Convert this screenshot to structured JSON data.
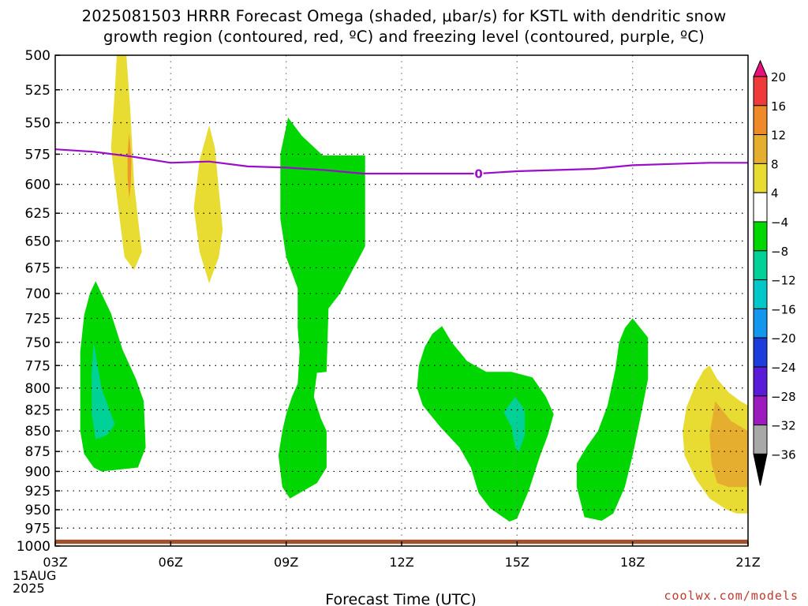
{
  "title": {
    "line1": "2025081503 HRRR Forecast Omega (shaded, μbar/s) for KSTL with dendritic snow",
    "line2": "growth region (contoured, red, ºC) and freezing level (contoured, purple, ºC)"
  },
  "credit": "coolwx.com/models",
  "chart_data": {
    "type": "heatmap",
    "xlabel": "Forecast Time (UTC)",
    "x_ticks": [
      "03Z",
      "06Z",
      "09Z",
      "12Z",
      "15Z",
      "18Z",
      "21Z"
    ],
    "x_tick_hours": [
      3,
      6,
      9,
      12,
      15,
      18,
      21
    ],
    "x_start_date_lines": [
      "15AUG",
      "2025"
    ],
    "xlim": [
      3,
      21
    ],
    "y_ticks": [
      500,
      525,
      550,
      575,
      600,
      625,
      650,
      675,
      700,
      725,
      750,
      775,
      800,
      825,
      850,
      875,
      900,
      925,
      950,
      975,
      1000
    ],
    "ylim": [
      500,
      1000
    ],
    "y_units": "hPa",
    "y_scale": "log",
    "grid": true,
    "colorbar": {
      "labels": [
        "20",
        "16",
        "12",
        "8",
        "4",
        "−4",
        "−8",
        "−12",
        "−16",
        "−20",
        "−24",
        "−28",
        "−32",
        "−36"
      ],
      "bins": [
        {
          "lo": 20,
          "hi": null,
          "color": "#e8107a"
        },
        {
          "lo": 16,
          "hi": 20,
          "color": "#f03a3a"
        },
        {
          "lo": 12,
          "hi": 16,
          "color": "#ee8a28"
        },
        {
          "lo": 8,
          "hi": 12,
          "color": "#e6ae2e"
        },
        {
          "lo": 4,
          "hi": 8,
          "color": "#e8dc33"
        },
        {
          "lo": -4,
          "hi": 4,
          "color": "#ffffff"
        },
        {
          "lo": -8,
          "hi": -4,
          "color": "#00d600"
        },
        {
          "lo": -12,
          "hi": -8,
          "color": "#00d196"
        },
        {
          "lo": -16,
          "hi": -12,
          "color": "#00c8c8"
        },
        {
          "lo": -20,
          "hi": -16,
          "color": "#1296ee"
        },
        {
          "lo": -24,
          "hi": -20,
          "color": "#1c3cdc"
        },
        {
          "lo": -28,
          "hi": -24,
          "color": "#5a1ad8"
        },
        {
          "lo": -32,
          "hi": -28,
          "color": "#9c1abe"
        },
        {
          "lo": -36,
          "hi": -32,
          "color": "#a8a8a8"
        },
        {
          "lo": null,
          "hi": -36,
          "color": "#000000"
        }
      ]
    },
    "omega_regions": [
      {
        "color": "#e8dc33",
        "points": [
          [
            4.6,
            500
          ],
          [
            4.85,
            500
          ],
          [
            4.95,
            540
          ],
          [
            5.05,
            600
          ],
          [
            5.15,
            630
          ],
          [
            5.25,
            660
          ],
          [
            5.05,
            677
          ],
          [
            4.8,
            665
          ],
          [
            4.6,
            610
          ],
          [
            4.45,
            570
          ],
          [
            4.55,
            525
          ]
        ]
      },
      {
        "color": "#ee9a28",
        "points": [
          [
            4.92,
            558
          ],
          [
            4.98,
            580
          ],
          [
            4.96,
            602
          ],
          [
            4.92,
            612
          ],
          [
            4.88,
            595
          ],
          [
            4.88,
            575
          ]
        ]
      },
      {
        "color": "#e8dc33",
        "points": [
          [
            7.0,
            552
          ],
          [
            7.15,
            570
          ],
          [
            7.35,
            640
          ],
          [
            7.25,
            665
          ],
          [
            7.0,
            690
          ],
          [
            6.75,
            660
          ],
          [
            6.6,
            620
          ],
          [
            6.75,
            580
          ]
        ]
      },
      {
        "color": "#00d600",
        "points": [
          [
            9.05,
            546
          ],
          [
            9.4,
            560
          ],
          [
            9.95,
            576
          ],
          [
            11.05,
            576
          ],
          [
            11.05,
            655
          ],
          [
            10.95,
            662
          ],
          [
            10.4,
            700
          ],
          [
            10.1,
            715
          ],
          [
            10.05,
            782
          ],
          [
            9.8,
            783
          ],
          [
            9.72,
            810
          ],
          [
            9.9,
            835
          ],
          [
            10.05,
            850
          ],
          [
            10.05,
            895
          ],
          [
            9.8,
            915
          ],
          [
            9.1,
            935
          ],
          [
            8.9,
            920
          ],
          [
            8.8,
            880
          ],
          [
            8.9,
            850
          ],
          [
            9.0,
            830
          ],
          [
            9.15,
            810
          ],
          [
            9.3,
            795
          ],
          [
            9.35,
            760
          ],
          [
            9.3,
            735
          ],
          [
            9.3,
            695
          ],
          [
            9.0,
            665
          ],
          [
            8.85,
            630
          ],
          [
            8.85,
            575
          ]
        ]
      },
      {
        "color": "#00d600",
        "points": [
          [
            4.05,
            688
          ],
          [
            4.45,
            720
          ],
          [
            4.75,
            758
          ],
          [
            5.1,
            790
          ],
          [
            5.3,
            815
          ],
          [
            5.35,
            870
          ],
          [
            5.15,
            895
          ],
          [
            4.2,
            900
          ],
          [
            4.0,
            895
          ],
          [
            3.75,
            878
          ],
          [
            3.65,
            850
          ],
          [
            3.65,
            760
          ],
          [
            3.75,
            722
          ],
          [
            3.9,
            700
          ]
        ]
      },
      {
        "color": "#00d196",
        "points": [
          [
            4.0,
            750
          ],
          [
            4.2,
            800
          ],
          [
            4.55,
            842
          ],
          [
            4.35,
            855
          ],
          [
            4.05,
            860
          ],
          [
            3.95,
            830
          ],
          [
            3.95,
            780
          ]
        ]
      },
      {
        "color": "#00d600",
        "points": [
          [
            13.05,
            733
          ],
          [
            13.3,
            750
          ],
          [
            13.7,
            770
          ],
          [
            14.2,
            782
          ],
          [
            14.85,
            782
          ],
          [
            15.4,
            788
          ],
          [
            15.75,
            810
          ],
          [
            15.95,
            830
          ],
          [
            15.8,
            855
          ],
          [
            15.6,
            880
          ],
          [
            15.3,
            925
          ],
          [
            15.0,
            962
          ],
          [
            14.8,
            966
          ],
          [
            14.3,
            948
          ],
          [
            14.0,
            928
          ],
          [
            13.8,
            895
          ],
          [
            13.5,
            870
          ],
          [
            13.0,
            845
          ],
          [
            12.55,
            820
          ],
          [
            12.4,
            800
          ],
          [
            12.45,
            775
          ],
          [
            12.6,
            755
          ],
          [
            12.8,
            741
          ]
        ]
      },
      {
        "color": "#00d196",
        "points": [
          [
            14.95,
            810
          ],
          [
            15.2,
            825
          ],
          [
            15.2,
            855
          ],
          [
            15.05,
            875
          ],
          [
            14.95,
            870
          ],
          [
            14.85,
            845
          ],
          [
            14.65,
            828
          ]
        ]
      },
      {
        "color": "#00d600",
        "points": [
          [
            18.0,
            725
          ],
          [
            18.4,
            745
          ],
          [
            18.4,
            790
          ],
          [
            18.2,
            835
          ],
          [
            18.0,
            880
          ],
          [
            17.8,
            920
          ],
          [
            17.5,
            955
          ],
          [
            17.2,
            965
          ],
          [
            16.75,
            960
          ],
          [
            16.55,
            920
          ],
          [
            16.55,
            890
          ],
          [
            16.8,
            870
          ],
          [
            17.1,
            850
          ],
          [
            17.35,
            820
          ],
          [
            17.55,
            780
          ],
          [
            17.65,
            750
          ],
          [
            17.8,
            735
          ]
        ]
      },
      {
        "color": "#e8dc33",
        "points": [
          [
            20.0,
            775
          ],
          [
            20.2,
            790
          ],
          [
            20.5,
            805
          ],
          [
            20.8,
            815
          ],
          [
            21.0,
            820
          ],
          [
            21.0,
            955
          ],
          [
            20.7,
            955
          ],
          [
            20.45,
            950
          ],
          [
            20.0,
            935
          ],
          [
            19.65,
            910
          ],
          [
            19.35,
            880
          ],
          [
            19.3,
            850
          ],
          [
            19.4,
            822
          ],
          [
            19.65,
            795
          ],
          [
            19.85,
            780
          ]
        ]
      },
      {
        "color": "#e6ae2e",
        "points": [
          [
            20.15,
            815
          ],
          [
            20.55,
            838
          ],
          [
            21.0,
            850
          ],
          [
            21.0,
            920
          ],
          [
            20.5,
            920
          ],
          [
            20.2,
            915
          ],
          [
            20.05,
            890
          ],
          [
            20.0,
            855
          ]
        ]
      }
    ],
    "freezing_level": {
      "label": "0",
      "label_x": 14.0,
      "color": "#9a0ec8",
      "x": [
        3,
        4,
        5,
        6,
        7,
        8,
        9,
        10,
        11,
        12,
        13,
        14,
        15,
        16,
        17,
        18,
        19,
        20,
        21
      ],
      "p": [
        571,
        573,
        577,
        582,
        581,
        585,
        586,
        588,
        591,
        591,
        591,
        591,
        589,
        588,
        587,
        584,
        583,
        582,
        582
      ]
    },
    "surface_ground": {
      "color": "#a0522d",
      "p_top": 991,
      "p_bottom": 997
    }
  }
}
